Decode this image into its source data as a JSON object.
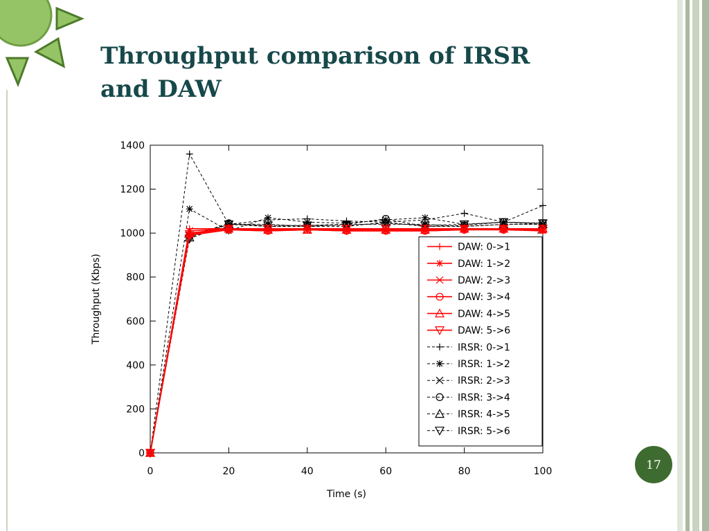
{
  "slide_title": "Throughput comparison of IRSR and DAW",
  "page_number": "17",
  "chart_data": {
    "type": "line",
    "xlabel": "Time (s)",
    "ylabel": "Throughput (Kbps)",
    "x": [
      0,
      10,
      20,
      30,
      40,
      50,
      60,
      70,
      80,
      90,
      100
    ],
    "xlim": [
      0,
      100
    ],
    "xticks": [
      0,
      20,
      40,
      60,
      80,
      100
    ],
    "ylim": [
      0,
      1400
    ],
    "yticks": [
      0,
      200,
      400,
      600,
      800,
      1000,
      1200,
      1400
    ],
    "legend": "lower right",
    "series": [
      {
        "name": "DAW: 0->1",
        "color": "#ff0000",
        "line_style": "solid",
        "marker": "plus",
        "values": [
          0,
          1020,
          1020,
          1020,
          1020,
          1020,
          1020,
          1020,
          1020,
          1020,
          1020
        ]
      },
      {
        "name": "DAW: 1->2",
        "color": "#ff0000",
        "line_style": "solid",
        "marker": "star",
        "values": [
          0,
          1000,
          1015,
          1010,
          1015,
          1010,
          1010,
          1010,
          1015,
          1015,
          1010
        ]
      },
      {
        "name": "DAW: 2->3",
        "color": "#ff0000",
        "line_style": "solid",
        "marker": "x",
        "values": [
          0,
          1010,
          1020,
          1015,
          1015,
          1015,
          1015,
          1015,
          1020,
          1020,
          1015
        ]
      },
      {
        "name": "DAW: 3->4",
        "color": "#ff0000",
        "line_style": "solid",
        "marker": "circle",
        "values": [
          0,
          990,
          1015,
          1010,
          1015,
          1010,
          1010,
          1010,
          1015,
          1015,
          1015
        ]
      },
      {
        "name": "DAW: 4->5",
        "color": "#ff0000",
        "line_style": "solid",
        "marker": "triangle",
        "values": [
          0,
          1000,
          1020,
          1015,
          1015,
          1015,
          1015,
          1015,
          1020,
          1020,
          1020
        ]
      },
      {
        "name": "DAW: 5->6",
        "color": "#ff0000",
        "line_style": "solid",
        "marker": "triangle-down",
        "values": [
          0,
          995,
          1020,
          1020,
          1020,
          1020,
          1020,
          1020,
          1020,
          1020,
          1020
        ]
      },
      {
        "name": "IRSR: 0->1",
        "color": "#000000",
        "line_style": "dashed",
        "marker": "plus",
        "values": [
          0,
          1360,
          1040,
          1060,
          1065,
          1055,
          1050,
          1060,
          1090,
          1050,
          1125
        ]
      },
      {
        "name": "IRSR: 1->2",
        "color": "#000000",
        "line_style": "dashed",
        "marker": "star",
        "values": [
          0,
          1110,
          1010,
          1070,
          1050,
          1045,
          1060,
          1070,
          1040,
          1050,
          1040
        ]
      },
      {
        "name": "IRSR: 2->3",
        "color": "#000000",
        "line_style": "dashed",
        "marker": "x",
        "values": [
          0,
          990,
          1040,
          1040,
          1030,
          1040,
          1040,
          1040,
          1030,
          1040,
          1040
        ]
      },
      {
        "name": "IRSR: 3->4",
        "color": "#000000",
        "line_style": "dashed",
        "marker": "circle",
        "values": [
          0,
          985,
          1045,
          1030,
          1035,
          1040,
          1065,
          1030,
          1035,
          1050,
          1045
        ]
      },
      {
        "name": "IRSR: 4->5",
        "color": "#000000",
        "line_style": "dashed",
        "marker": "triangle",
        "values": [
          0,
          980,
          1040,
          1030,
          1030,
          1030,
          1050,
          1030,
          1030,
          1040,
          1040
        ]
      },
      {
        "name": "IRSR: 5->6",
        "color": "#000000",
        "line_style": "dashed",
        "marker": "triangle-down",
        "values": [
          0,
          975,
          1040,
          1035,
          1035,
          1035,
          1045,
          1035,
          1040,
          1050,
          1045
        ]
      }
    ]
  }
}
